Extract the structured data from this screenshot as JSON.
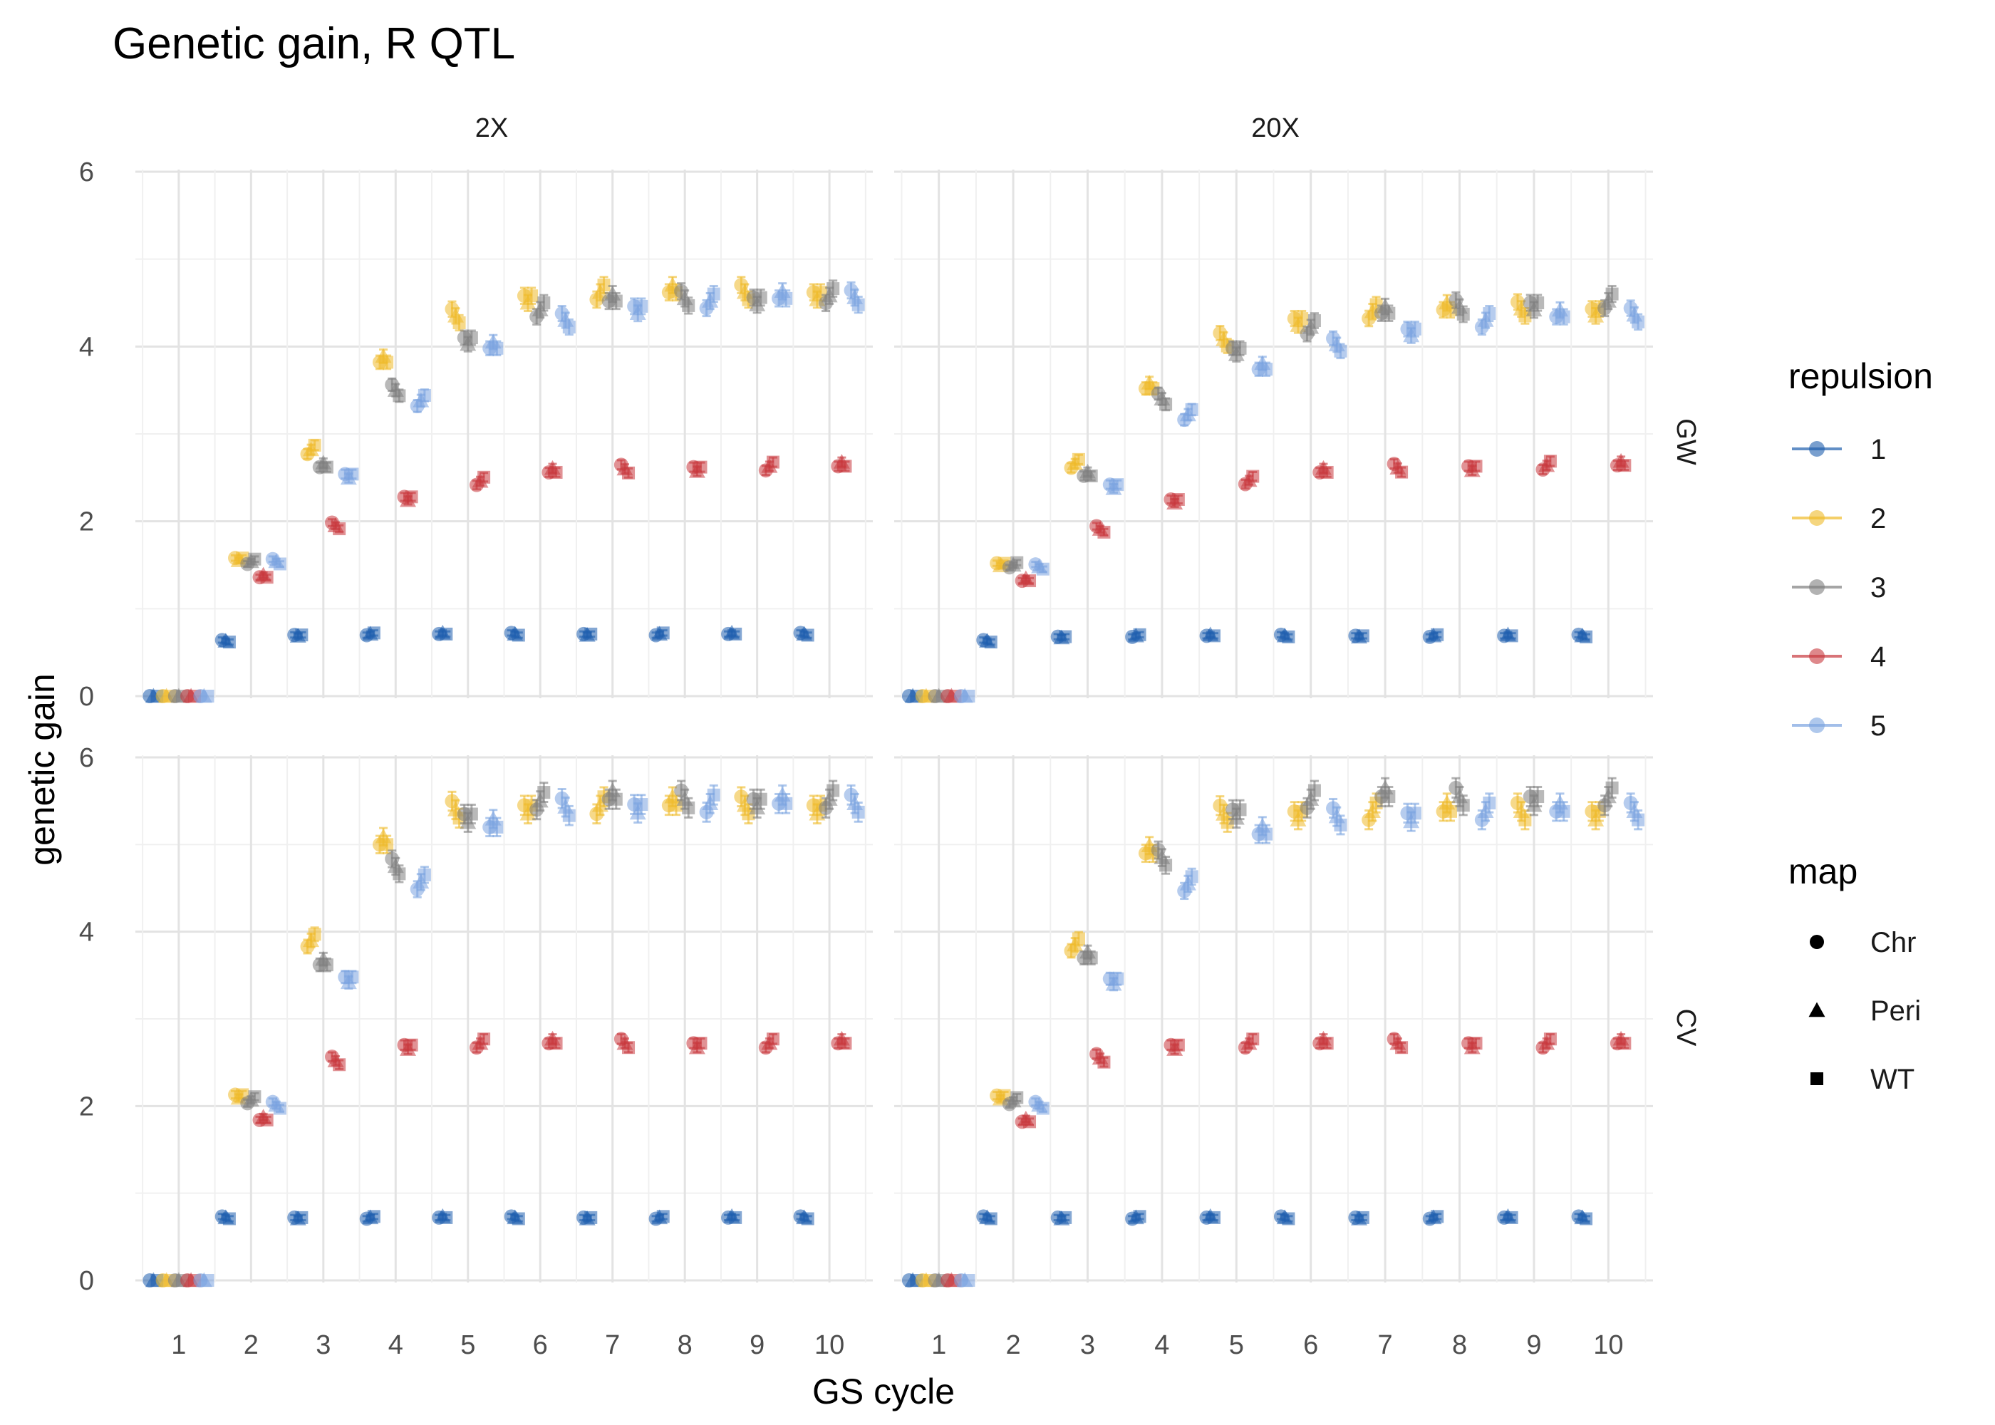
{
  "chart_data": {
    "type": "scatter",
    "title": "Genetic gain, R QTL",
    "xlabel": "GS cycle",
    "ylabel": "genetic gain",
    "x": [
      1,
      2,
      3,
      4,
      5,
      6,
      7,
      8,
      9,
      10
    ],
    "xticks": [
      "1",
      "2",
      "3",
      "4",
      "5",
      "6",
      "7",
      "8",
      "9",
      "10"
    ],
    "yticks": [
      "0",
      "2",
      "4",
      "6"
    ],
    "ylim": [
      0,
      6
    ],
    "facet_cols": [
      "2X",
      "20X"
    ],
    "facet_rows": [
      "GW",
      "CV"
    ],
    "grid": true,
    "legend_position": "right",
    "legends": {
      "repulsion": {
        "title": "repulsion",
        "items": [
          {
            "label": "1",
            "color": "#1F5FAE"
          },
          {
            "label": "2",
            "color": "#EFBA2A"
          },
          {
            "label": "3",
            "color": "#7F7F7F"
          },
          {
            "label": "4",
            "color": "#C8393E"
          },
          {
            "label": "5",
            "color": "#7AA3E0"
          }
        ]
      },
      "map": {
        "title": "map",
        "items": [
          {
            "label": "Chr",
            "shape": "circle"
          },
          {
            "label": "Peri",
            "shape": "triangle"
          },
          {
            "label": "WT",
            "shape": "square"
          }
        ]
      }
    },
    "panels": [
      {
        "col": "2X",
        "row": "GW",
        "series": [
          {
            "repulsion": "1",
            "values": [
              0,
              0.63,
              0.7,
              0.71,
              0.71,
              0.71,
              0.71,
              0.71,
              0.71,
              0.71
            ]
          },
          {
            "repulsion": "2",
            "values": [
              0,
              1.58,
              2.82,
              3.82,
              4.35,
              4.58,
              4.62,
              4.62,
              4.62,
              4.62
            ]
          },
          {
            "repulsion": "3",
            "values": [
              0,
              1.54,
              2.62,
              3.5,
              4.1,
              4.42,
              4.52,
              4.55,
              4.56,
              4.58
            ]
          },
          {
            "repulsion": "4",
            "values": [
              0,
              1.36,
              1.95,
              2.28,
              2.46,
              2.56,
              2.6,
              2.62,
              2.63,
              2.63
            ]
          },
          {
            "repulsion": "5",
            "values": [
              0,
              1.54,
              2.54,
              3.38,
              3.98,
              4.3,
              4.46,
              4.52,
              4.55,
              4.56
            ]
          }
        ]
      },
      {
        "col": "20X",
        "row": "GW",
        "series": [
          {
            "repulsion": "1",
            "values": [
              0,
              0.63,
              0.68,
              0.69,
              0.69,
              0.69,
              0.69,
              0.69,
              0.69,
              0.69
            ]
          },
          {
            "repulsion": "2",
            "values": [
              0,
              1.52,
              2.66,
              3.52,
              4.08,
              4.32,
              4.4,
              4.42,
              4.43,
              4.43
            ]
          },
          {
            "repulsion": "3",
            "values": [
              0,
              1.5,
              2.52,
              3.4,
              3.98,
              4.22,
              4.38,
              4.45,
              4.5,
              4.52
            ]
          },
          {
            "repulsion": "4",
            "values": [
              0,
              1.32,
              1.91,
              2.25,
              2.47,
              2.56,
              2.61,
              2.63,
              2.64,
              2.64
            ]
          },
          {
            "repulsion": "5",
            "values": [
              0,
              1.48,
              2.42,
              3.22,
              3.74,
              4.02,
              4.2,
              4.3,
              4.34,
              4.36
            ]
          }
        ]
      },
      {
        "col": "2X",
        "row": "CV",
        "series": [
          {
            "repulsion": "1",
            "values": [
              0,
              0.72,
              0.72,
              0.72,
              0.72,
              0.72,
              0.72,
              0.72,
              0.72,
              0.72
            ]
          },
          {
            "repulsion": "2",
            "values": [
              0,
              2.13,
              3.9,
              5.0,
              5.4,
              5.45,
              5.45,
              5.45,
              5.45,
              5.45
            ]
          },
          {
            "repulsion": "3",
            "values": [
              0,
              2.07,
              3.62,
              4.75,
              5.35,
              5.5,
              5.52,
              5.52,
              5.52,
              5.52
            ]
          },
          {
            "repulsion": "4",
            "values": [
              0,
              1.84,
              2.52,
              2.7,
              2.72,
              2.72,
              2.72,
              2.72,
              2.72,
              2.72
            ]
          },
          {
            "repulsion": "5",
            "values": [
              0,
              2.01,
              3.48,
              4.57,
              5.2,
              5.43,
              5.46,
              5.47,
              5.47,
              5.47
            ]
          }
        ]
      },
      {
        "col": "20X",
        "row": "CV",
        "series": [
          {
            "repulsion": "1",
            "values": [
              0,
              0.72,
              0.72,
              0.72,
              0.72,
              0.72,
              0.72,
              0.72,
              0.72,
              0.72
            ]
          },
          {
            "repulsion": "2",
            "values": [
              0,
              2.12,
              3.85,
              4.9,
              5.35,
              5.38,
              5.38,
              5.38,
              5.38,
              5.38
            ]
          },
          {
            "repulsion": "3",
            "values": [
              0,
              2.06,
              3.7,
              4.85,
              5.4,
              5.52,
              5.55,
              5.55,
              5.55,
              5.55
            ]
          },
          {
            "repulsion": "4",
            "values": [
              0,
              1.82,
              2.55,
              2.7,
              2.72,
              2.72,
              2.72,
              2.72,
              2.72,
              2.72
            ]
          },
          {
            "repulsion": "5",
            "values": [
              0,
              2.01,
              3.46,
              4.55,
              5.12,
              5.32,
              5.36,
              5.38,
              5.38,
              5.38
            ]
          }
        ]
      }
    ]
  }
}
